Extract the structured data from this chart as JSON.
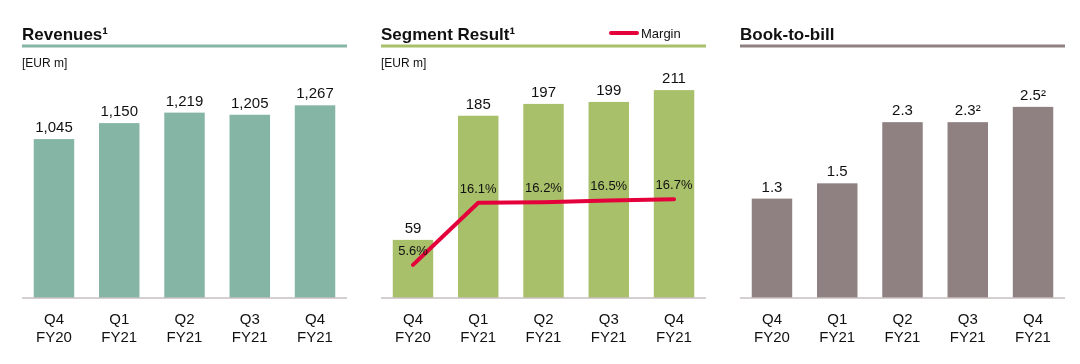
{
  "chart_data": [
    {
      "type": "bar",
      "title": "Revenues¹",
      "ylabel": "[EUR m]",
      "categories": [
        "Q4 FY20",
        "Q1 FY21",
        "Q2 FY21",
        "Q3 FY21",
        "Q4 FY21"
      ],
      "tick_labels": "x",
      "series": [
        {
          "color": "#84b5a5",
          "values": [
            1045,
            1150,
            1219,
            1205,
            1267
          ],
          "value_labels": [
            "1,045",
            "1,150",
            "1,219",
            "1,205",
            "1,267"
          ]
        }
      ]
    },
    {
      "type": "bar",
      "title": "Segment Result¹",
      "ylabel": "[EUR m]",
      "categories": [
        "Q4 FY20",
        "Q1 FY21",
        "Q2 FY21",
        "Q3 FY21",
        "Q4 FY21"
      ],
      "tick_labels": "x",
      "legend": "top right",
      "series": [
        {
          "color": "#a9c06a",
          "values": [
            59,
            185,
            197,
            199,
            211
          ],
          "value_labels": [
            "59",
            "185",
            "197",
            "199",
            "211"
          ]
        },
        {
          "name": "Margin",
          "type": "line",
          "axis": "y2",
          "color": "#e4003a",
          "values": [
            5.6,
            16.1,
            16.2,
            16.5,
            16.7
          ],
          "value_labels": [
            "5.6%",
            "16.1%",
            "16.2%",
            "16.5%",
            "16.7%"
          ]
        }
      ]
    },
    {
      "type": "bar",
      "title": "Book-to-bill",
      "categories": [
        "Q4 FY20",
        "Q1 FY21",
        "Q2 FY21",
        "Q3 FY21",
        "Q4 FY21"
      ],
      "tick_labels": "x",
      "series": [
        {
          "color": "#8f8081",
          "values": [
            1.3,
            1.5,
            2.3,
            2.3,
            2.5
          ],
          "value_labels": [
            "1.3",
            "1.5",
            "2.3",
            "2.3²",
            "2.5²"
          ]
        }
      ]
    }
  ]
}
